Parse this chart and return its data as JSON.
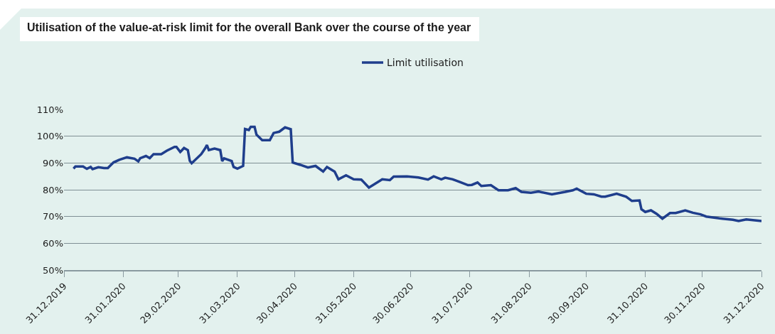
{
  "chart_data": {
    "type": "line",
    "title": "Utilisation of the value-at-risk limit for the overall Bank over the course of the year",
    "x": [
      "2020-01-05",
      "2020-01-06",
      "2020-01-10",
      "2020-01-12",
      "2020-01-14",
      "2020-01-15",
      "2020-01-18",
      "2020-01-21",
      "2020-01-23",
      "2020-01-26",
      "2020-01-29",
      "2020-02-02",
      "2020-02-06",
      "2020-02-08",
      "2020-02-09",
      "2020-02-12",
      "2020-02-14",
      "2020-02-16",
      "2020-02-20",
      "2020-02-23",
      "2020-02-27",
      "2020-02-28",
      "2020-03-01",
      "2020-03-03",
      "2020-03-05",
      "2020-03-06",
      "2020-03-07",
      "2020-03-12",
      "2020-03-14",
      "2020-03-15",
      "2020-03-16",
      "2020-03-19",
      "2020-03-22",
      "2020-03-23",
      "2020-03-24",
      "2020-03-28",
      "2020-03-29",
      "2020-03-31",
      "2020-04-03",
      "2020-04-04",
      "2020-04-06",
      "2020-04-07",
      "2020-04-09",
      "2020-04-10",
      "2020-04-13",
      "2020-04-17",
      "2020-04-19",
      "2020-04-22",
      "2020-04-25",
      "2020-04-28",
      "2020-04-29",
      "2020-05-03",
      "2020-05-07",
      "2020-05-11",
      "2020-05-15",
      "2020-05-17",
      "2020-05-21",
      "2020-05-23",
      "2020-05-27",
      "2020-05-31",
      "2020-06-04",
      "2020-06-08",
      "2020-06-15",
      "2020-06-19",
      "2020-06-21",
      "2020-06-28",
      "2020-07-04",
      "2020-07-09",
      "2020-07-12",
      "2020-07-16",
      "2020-07-18",
      "2020-07-22",
      "2020-07-26",
      "2020-07-30",
      "2020-08-01",
      "2020-08-04",
      "2020-08-06",
      "2020-08-11",
      "2020-08-15",
      "2020-08-20",
      "2020-08-24",
      "2020-08-27",
      "2020-09-01",
      "2020-09-05",
      "2020-09-12",
      "2020-09-19",
      "2020-09-23",
      "2020-09-25",
      "2020-09-30",
      "2020-10-04",
      "2020-10-08",
      "2020-10-10",
      "2020-10-16",
      "2020-10-21",
      "2020-10-24",
      "2020-10-28",
      "2020-10-29",
      "2020-10-31",
      "2020-11-03",
      "2020-11-06",
      "2020-11-09",
      "2020-11-13",
      "2020-11-16",
      "2020-11-21",
      "2020-11-25",
      "2020-11-29",
      "2020-12-02",
      "2020-12-09",
      "2020-12-16",
      "2020-12-19",
      "2020-12-23",
      "2020-12-31"
    ],
    "series": [
      {
        "name": "Limit utilisation",
        "color": "#1f3e8c",
        "values": [
          87.9,
          88.7,
          88.7,
          87.8,
          88.5,
          87.7,
          88.4,
          88.1,
          88.1,
          90.2,
          91.2,
          92.1,
          91.6,
          90.6,
          91.8,
          92.6,
          91.8,
          93.3,
          93.3,
          94.6,
          96.0,
          96.0,
          94.1,
          95.6,
          94.8,
          90.8,
          89.9,
          93.3,
          95.4,
          96.7,
          94.8,
          95.4,
          94.8,
          90.7,
          91.7,
          90.7,
          88.5,
          87.9,
          88.9,
          102.7,
          102.3,
          103.5,
          103.5,
          100.6,
          98.5,
          98.5,
          101.2,
          101.7,
          103.3,
          102.6,
          90.2,
          89.3,
          88.3,
          88.9,
          86.8,
          88.5,
          86.8,
          83.9,
          85.4,
          83.9,
          83.8,
          80.8,
          83.9,
          83.6,
          84.9,
          85.0,
          84.6,
          83.8,
          85.0,
          83.9,
          84.5,
          83.9,
          82.8,
          81.7,
          81.8,
          82.7,
          81.4,
          81.7,
          79.8,
          79.8,
          80.6,
          79.2,
          78.9,
          79.3,
          78.3,
          79.2,
          79.8,
          80.4,
          78.5,
          78.3,
          77.4,
          77.4,
          78.5,
          77.4,
          75.8,
          76.0,
          72.7,
          71.7,
          72.3,
          71.0,
          69.2,
          71.3,
          71.3,
          72.3,
          71.4,
          70.8,
          70.0,
          69.3,
          68.8,
          68.3,
          68.9,
          68.3
        ]
      }
    ],
    "xlim": [
      "2019-12-31",
      "2020-12-31"
    ],
    "xticks": [
      {
        "value": "2019-12-31",
        "label": "31.12.2019"
      },
      {
        "value": "2020-01-31",
        "label": "31.01.2020"
      },
      {
        "value": "2020-02-29",
        "label": "29.02.2020"
      },
      {
        "value": "2020-03-31",
        "label": "31.03.2020"
      },
      {
        "value": "2020-04-30",
        "label": "30.04.2020"
      },
      {
        "value": "2020-05-31",
        "label": "31.05.2020"
      },
      {
        "value": "2020-06-30",
        "label": "30.06.2020"
      },
      {
        "value": "2020-07-31",
        "label": "31.07.2020"
      },
      {
        "value": "2020-08-31",
        "label": "31.08.2020"
      },
      {
        "value": "2020-09-30",
        "label": "30.09.2020"
      },
      {
        "value": "2020-10-31",
        "label": "31.10.2020"
      },
      {
        "value": "2020-11-30",
        "label": "30.11.2020"
      },
      {
        "value": "2020-12-31",
        "label": "31.12.2020"
      }
    ],
    "ylim": [
      50,
      110
    ],
    "yticks": [
      {
        "value": 50,
        "label": "50%"
      },
      {
        "value": 60,
        "label": "60%"
      },
      {
        "value": 70,
        "label": "70%"
      },
      {
        "value": 80,
        "label": "80%"
      },
      {
        "value": 90,
        "label": "90%"
      },
      {
        "value": 100,
        "label": "100%"
      },
      {
        "value": 110,
        "label": "110%"
      }
    ],
    "grid": "y",
    "legend": "top",
    "marker": "none",
    "line_style": "solid"
  }
}
